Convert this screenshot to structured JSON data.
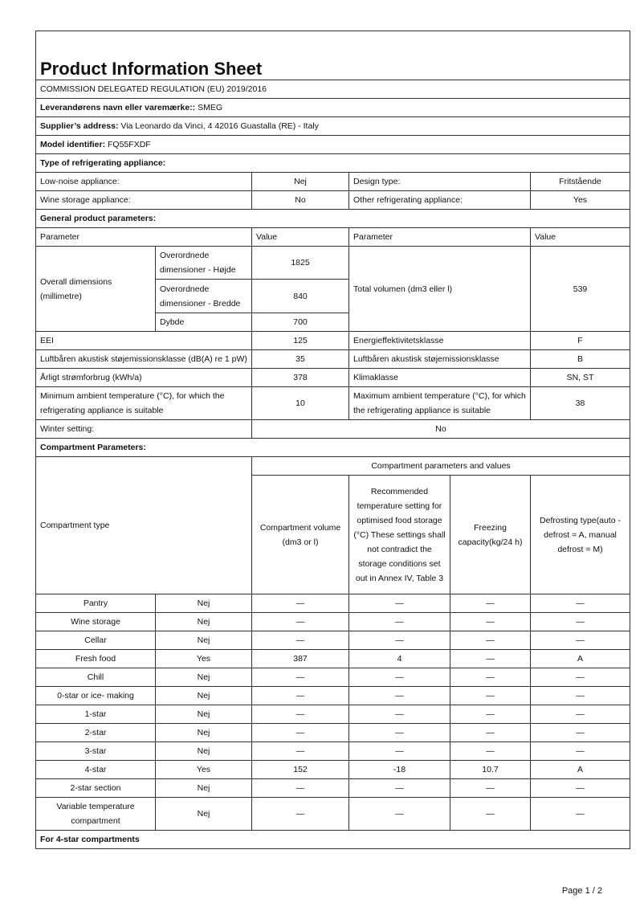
{
  "title": "Product Information Sheet",
  "regulation": "COMMISSION DELEGATED REGULATION (EU) 2019/2016",
  "supplier_name": {
    "label": "Leverandørens navn eller varemærke::",
    "value": "SMEG"
  },
  "supplier_address": {
    "label": "Supplier’s address:",
    "value": "Via Leonardo da Vinci, 4 42016 Guastalla (RE) - Italy"
  },
  "model": {
    "label": "Model identifier:",
    "value": "FQ55FXDF"
  },
  "type_heading": "Type of refrigerating appliance:",
  "low_noise": {
    "label": "Low-noise appliance:",
    "value": "Nej"
  },
  "design_type": {
    "label": "Design type:",
    "value": "Fritstående"
  },
  "wine_storage": {
    "label": "Wine storage appliance:",
    "value": "No"
  },
  "other": {
    "label": "Other refrigerating appliance:",
    "value": "Yes"
  },
  "general_heading": "General product parameters:",
  "param_header": {
    "parameter": "Parameter",
    "value": "Value"
  },
  "dimensions": {
    "label": "Overall dimensions (millimetre)",
    "height_label": "Overordnede dimensioner - Højde",
    "height": "1825",
    "width_label": "Overordnede dimensioner - Bredde",
    "width": "840",
    "depth_label": "Dybde",
    "depth": "700"
  },
  "total_volume": {
    "label": "Total volumen (dm3 eller l)",
    "value": "539"
  },
  "eei": {
    "label": "EEI",
    "value": "125"
  },
  "energy_class": {
    "label": "Energieffektivitetsklasse",
    "value": "F"
  },
  "noise": {
    "label": "Luftbåren akustisk støjemissionsklasse (dB(A) re 1 pW)",
    "value": "35"
  },
  "noise_class": {
    "label": "Luftbåren akustisk støjemissionsklasse",
    "value": "B"
  },
  "energy": {
    "label": "Årligt strømforbrug (kWh/a)",
    "value": "378"
  },
  "climate": {
    "label": "Klimaklasse",
    "value": "SN, ST"
  },
  "min_temp": {
    "label": "Minimum ambient temperature (°C), for which the refrigerating appliance is suitable",
    "value": "10"
  },
  "max_temp": {
    "label": "Maximum ambient temperature (°C), for which the refrigerating appliance is suitable",
    "value": "38"
  },
  "winter": {
    "label": "Winter setting:",
    "value": "No"
  },
  "compartment_heading": "Compartment Parameters:",
  "compartment_header": {
    "group": "Compartment parameters and values",
    "type": "Compartment type",
    "volume": "Compartment volume (dm3 or l)",
    "temp": "Recommended temperature setting for optimised food storage (°C) These settings shall not contradict the storage conditions set out in Annex IV, Table 3",
    "freezing": "Freezing capacity(kg/24 h)",
    "defrost": "Defrosting type(auto - defrost = A, manual defrost = M)"
  },
  "compartments": [
    [
      "Pantry",
      "Nej",
      "—",
      "—",
      "—",
      "—"
    ],
    [
      "Wine storage",
      "Nej",
      "—",
      "—",
      "—",
      "—"
    ],
    [
      "Cellar",
      "Nej",
      "—",
      "—",
      "—",
      "—"
    ],
    [
      "Fresh food",
      "Yes",
      "387",
      "4",
      "—",
      "A"
    ],
    [
      "Chill",
      "Nej",
      "—",
      "—",
      "—",
      "—"
    ],
    [
      "0-star or ice- making",
      "Nej",
      "—",
      "—",
      "—",
      "—"
    ],
    [
      "1-star",
      "Nej",
      "—",
      "—",
      "—",
      "—"
    ],
    [
      "2-star",
      "Nej",
      "—",
      "—",
      "—",
      "—"
    ],
    [
      "3-star",
      "Nej",
      "—",
      "—",
      "—",
      "—"
    ],
    [
      "4-star",
      "Yes",
      "152",
      "-18",
      "10.7",
      "A"
    ],
    [
      "2-star section",
      "Nej",
      "—",
      "—",
      "—",
      "—"
    ],
    [
      "Variable temperature compartment",
      "Nej",
      "—",
      "—",
      "—",
      "—"
    ]
  ],
  "four_star_heading": "For 4-star compartments",
  "page": "Page 1 / 2"
}
